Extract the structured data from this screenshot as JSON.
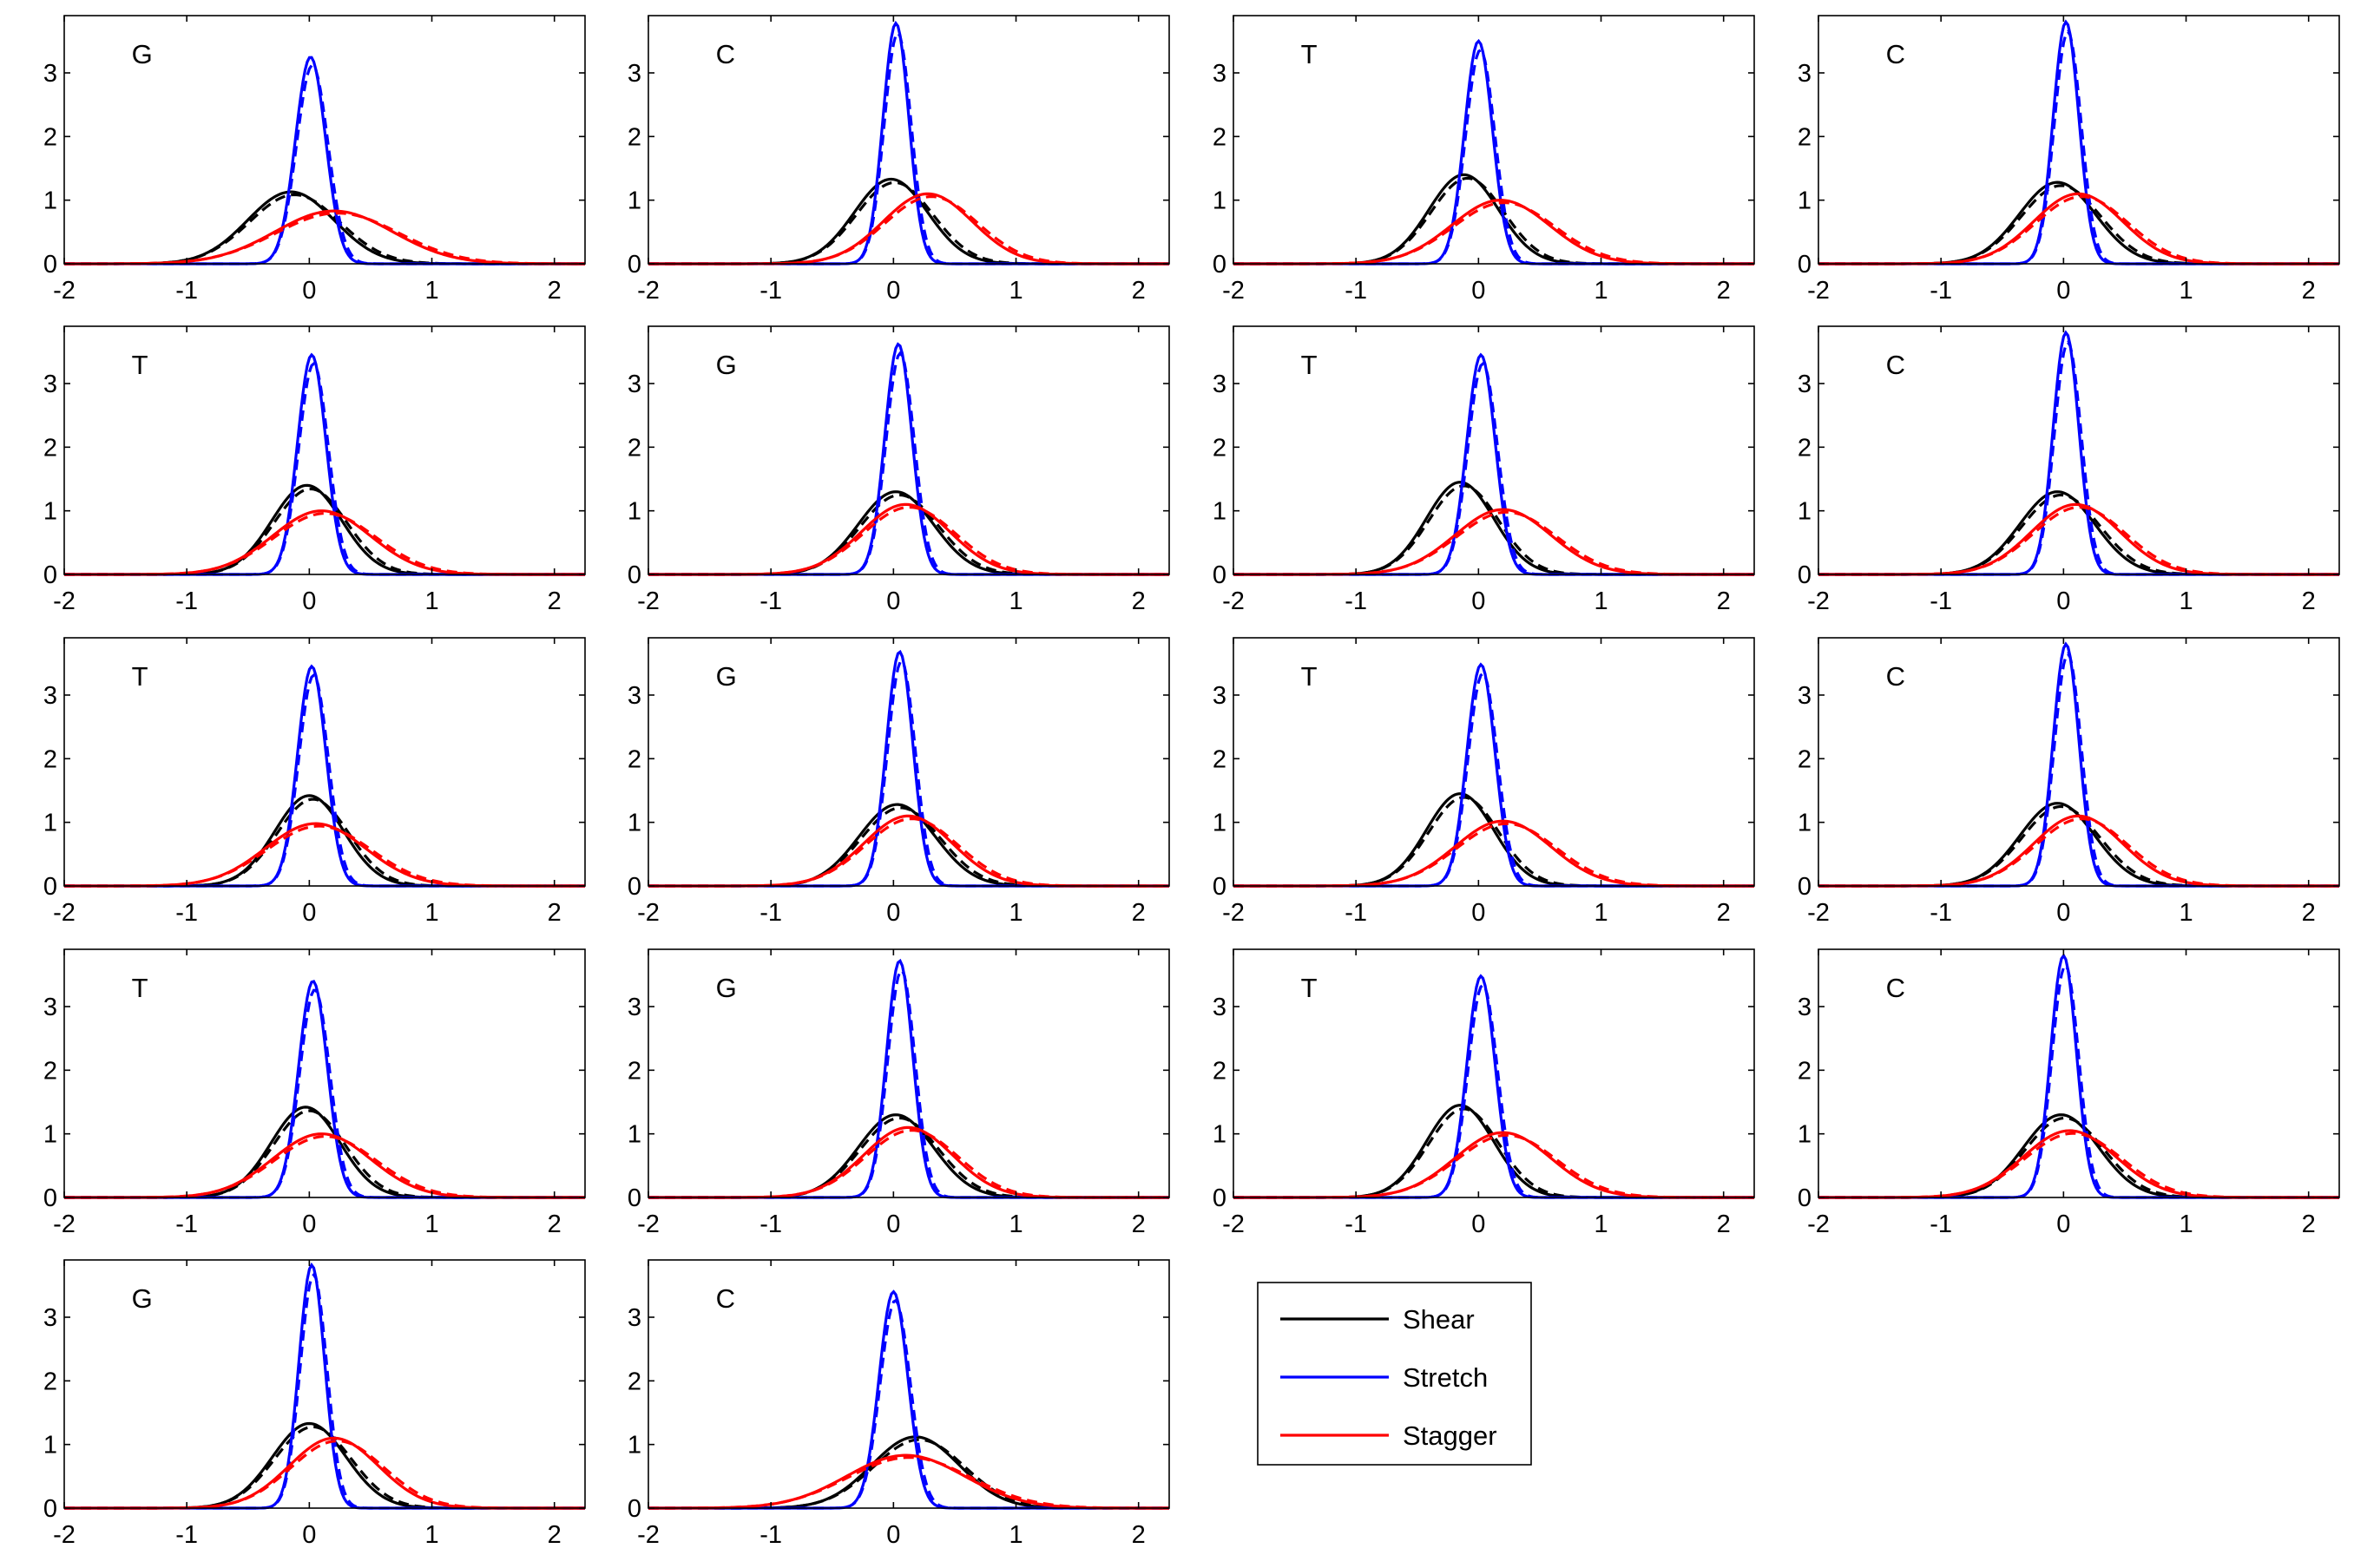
{
  "chart_data": {
    "type": "line",
    "xlim": [
      -2,
      2.25
    ],
    "ylim": [
      0,
      3.9
    ],
    "xticks": [
      -2,
      -1,
      0,
      1,
      2
    ],
    "yticks": [
      0,
      1,
      2,
      3
    ],
    "grid": false,
    "legend_position": "inside empty grid slot, right of the last row",
    "legend": [
      {
        "name": "Shear",
        "color": "#000000"
      },
      {
        "name": "Stretch",
        "color": "#0000ff"
      },
      {
        "name": "Stagger",
        "color": "#ff0000"
      }
    ],
    "line_styles": [
      "solid",
      "dashed"
    ],
    "panels": [
      {
        "label": "G",
        "shear": {
          "mean": -0.15,
          "peak": 1.13
        },
        "stretch": {
          "mean": 0.01,
          "peak": 3.25
        },
        "stagger": {
          "mean": 0.2,
          "peak": 0.83
        }
      },
      {
        "label": "C",
        "shear": {
          "mean": -0.02,
          "peak": 1.33
        },
        "stretch": {
          "mean": 0.02,
          "peak": 3.78
        },
        "stagger": {
          "mean": 0.28,
          "peak": 1.1
        }
      },
      {
        "label": "T",
        "shear": {
          "mean": -0.12,
          "peak": 1.4
        },
        "stretch": {
          "mean": 0.0,
          "peak": 3.5
        },
        "stagger": {
          "mean": 0.18,
          "peak": 1.0
        }
      },
      {
        "label": "C",
        "shear": {
          "mean": -0.05,
          "peak": 1.28
        },
        "stretch": {
          "mean": 0.02,
          "peak": 3.8
        },
        "stagger": {
          "mean": 0.12,
          "peak": 1.1
        }
      },
      {
        "label": "T",
        "shear": {
          "mean": -0.02,
          "peak": 1.4
        },
        "stretch": {
          "mean": 0.02,
          "peak": 3.45
        },
        "stagger": {
          "mean": 0.1,
          "peak": 1.0
        }
      },
      {
        "label": "G",
        "shear": {
          "mean": 0.02,
          "peak": 1.3
        },
        "stretch": {
          "mean": 0.04,
          "peak": 3.62
        },
        "stagger": {
          "mean": 0.1,
          "peak": 1.1
        }
      },
      {
        "label": "T",
        "shear": {
          "mean": -0.15,
          "peak": 1.45
        },
        "stretch": {
          "mean": 0.02,
          "peak": 3.45
        },
        "stagger": {
          "mean": 0.2,
          "peak": 1.02
        }
      },
      {
        "label": "C",
        "shear": {
          "mean": -0.05,
          "peak": 1.3
        },
        "stretch": {
          "mean": 0.02,
          "peak": 3.8
        },
        "stagger": {
          "mean": 0.1,
          "peak": 1.1
        }
      },
      {
        "label": "T",
        "shear": {
          "mean": 0.0,
          "peak": 1.42
        },
        "stretch": {
          "mean": 0.02,
          "peak": 3.45
        },
        "stagger": {
          "mean": 0.05,
          "peak": 0.98
        }
      },
      {
        "label": "G",
        "shear": {
          "mean": 0.03,
          "peak": 1.28
        },
        "stretch": {
          "mean": 0.05,
          "peak": 3.68
        },
        "stagger": {
          "mean": 0.12,
          "peak": 1.1
        }
      },
      {
        "label": "T",
        "shear": {
          "mean": -0.15,
          "peak": 1.45
        },
        "stretch": {
          "mean": 0.02,
          "peak": 3.48
        },
        "stagger": {
          "mean": 0.2,
          "peak": 1.02
        }
      },
      {
        "label": "C",
        "shear": {
          "mean": -0.05,
          "peak": 1.3
        },
        "stretch": {
          "mean": 0.02,
          "peak": 3.8
        },
        "stagger": {
          "mean": 0.12,
          "peak": 1.1
        }
      },
      {
        "label": "T",
        "shear": {
          "mean": -0.03,
          "peak": 1.42
        },
        "stretch": {
          "mean": 0.03,
          "peak": 3.4
        },
        "stagger": {
          "mean": 0.1,
          "peak": 1.0
        }
      },
      {
        "label": "G",
        "shear": {
          "mean": 0.02,
          "peak": 1.3
        },
        "stretch": {
          "mean": 0.05,
          "peak": 3.72
        },
        "stagger": {
          "mean": 0.12,
          "peak": 1.1
        }
      },
      {
        "label": "T",
        "shear": {
          "mean": -0.15,
          "peak": 1.45
        },
        "stretch": {
          "mean": 0.02,
          "peak": 3.48
        },
        "stagger": {
          "mean": 0.2,
          "peak": 1.02
        }
      },
      {
        "label": "C",
        "shear": {
          "mean": -0.02,
          "peak": 1.3
        },
        "stretch": {
          "mean": 0.0,
          "peak": 3.8
        },
        "stagger": {
          "mean": 0.05,
          "peak": 1.05
        }
      },
      {
        "label": "G",
        "shear": {
          "mean": 0.0,
          "peak": 1.33
        },
        "stretch": {
          "mean": 0.02,
          "peak": 3.82
        },
        "stagger": {
          "mean": 0.2,
          "peak": 1.1
        }
      },
      {
        "label": "C",
        "shear": {
          "mean": 0.18,
          "peak": 1.12
        },
        "stretch": {
          "mean": 0.0,
          "peak": 3.4
        },
        "stagger": {
          "mean": 0.1,
          "peak": 0.83
        }
      }
    ]
  }
}
